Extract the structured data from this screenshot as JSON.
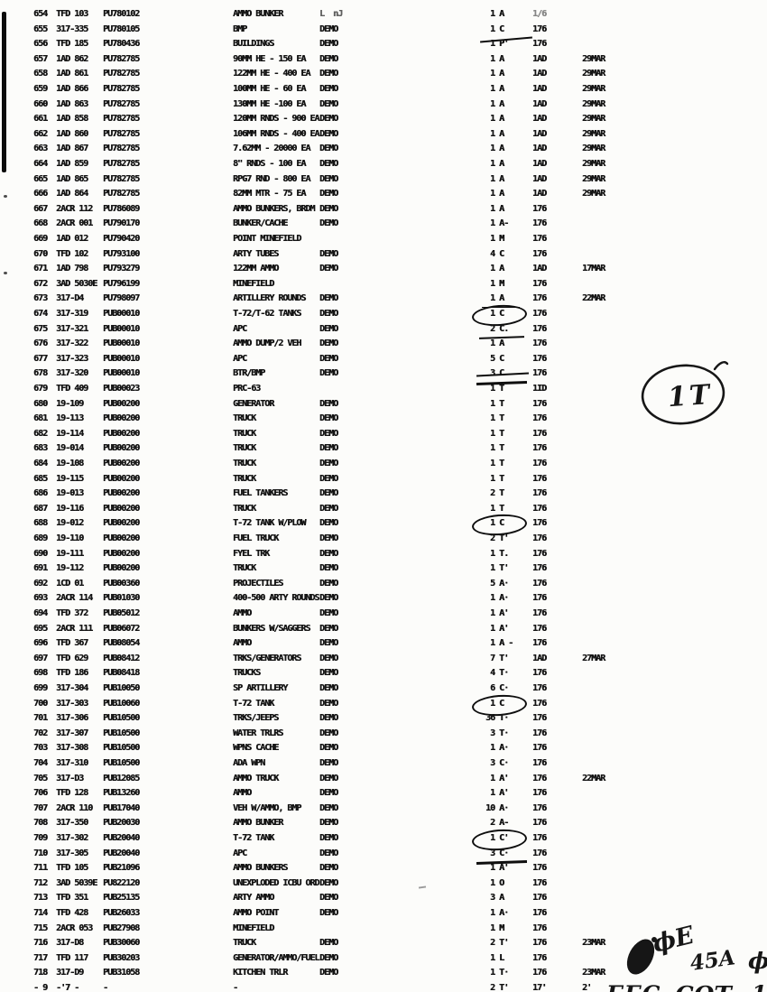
{
  "document": {
    "bg_color": "#fcfcfa",
    "ink_color": "#141414",
    "handwritten": {
      "circled_note": "1T",
      "top_fragments": [
        "ϕE",
        "45A",
        "ϕ"
      ],
      "bottom_fragments": [
        "ΓΓC",
        "ϹΟΤ",
        "1'"
      ]
    },
    "rows": [
      {
        "no": "654",
        "unit": "TFD 103",
        "code": "PU780102",
        "desc": "AMMO BUNKER",
        "demo": "L  nJ",
        "demo_faint": true,
        "qty": " 1 A",
        "grp": "1/6",
        "grp_faint": true,
        "date": ""
      },
      {
        "no": "655",
        "unit": "317-335",
        "code": "PU780105",
        "desc": "BMP",
        "demo": "DEMO",
        "qty": " 1 C",
        "grp": "176",
        "date": "",
        "mark": "underline-slant"
      },
      {
        "no": "656",
        "unit": "TFD 185",
        "code": "PU780436",
        "desc": "BUILDINGS",
        "demo": "DEMO",
        "qty": " 1 P'",
        "grp": "176",
        "date": ""
      },
      {
        "no": "657",
        "unit": "1AD 862",
        "code": "PU782785",
        "desc": "90MM HE - 150 EA",
        "demo": "DEMO",
        "qty": " 1 A",
        "grp": "1AD",
        "date": "29MAR"
      },
      {
        "no": "658",
        "unit": "1AD 861",
        "code": "PU782785",
        "desc": "122MM HE - 400 EA",
        "demo": "DEMO",
        "qty": " 1 A",
        "grp": "1AD",
        "date": "29MAR"
      },
      {
        "no": "659",
        "unit": "1AD 866",
        "code": "PU782785",
        "desc": "100MM HE - 60 EA",
        "demo": "DEMO",
        "qty": " 1 A",
        "grp": "1AD",
        "date": "29MAR"
      },
      {
        "no": "660",
        "unit": "1AD 863",
        "code": "PU782785",
        "desc": "130MM HE -100 EA",
        "demo": "DEMO",
        "qty": " 1 A",
        "grp": "1AD",
        "date": "29MAR"
      },
      {
        "no": "661",
        "unit": "1AD 858",
        "code": "PU782785",
        "desc": "120MM RNDS - 900 EA",
        "demo": "DEMO",
        "qty": " 1 A",
        "grp": "1AD",
        "date": "29MAR"
      },
      {
        "no": "662",
        "unit": "1AD 860",
        "code": "PU782785",
        "desc": "106MM RNDS - 400 EA",
        "demo": "DEMO",
        "qty": " 1 A",
        "grp": "1AD",
        "date": "29MAR"
      },
      {
        "no": "663",
        "unit": "1AD 867",
        "code": "PU782785",
        "desc": "7.62MM - 20000 EA",
        "demo": "DEMO",
        "qty": " 1 A",
        "grp": "1AD",
        "date": "29MAR"
      },
      {
        "no": "664",
        "unit": "1AD 859",
        "code": "PU782785",
        "desc": "8\" RNDS - 100 EA",
        "demo": "DEMO",
        "qty": " 1 A",
        "grp": "1AD",
        "date": "29MAR"
      },
      {
        "no": "665",
        "unit": "1AD 865",
        "code": "PU782785",
        "desc": "RPG7 RND - 800 EA",
        "demo": "DEMO",
        "qty": " 1 A",
        "grp": "1AD",
        "date": "29MAR"
      },
      {
        "no": "666",
        "unit": "1AD 864",
        "code": "PU782785",
        "desc": "82MM MTR - 75 EA",
        "demo": "DEMO",
        "qty": " 1 A",
        "grp": "1AD",
        "date": "29MAR"
      },
      {
        "no": "667",
        "unit": "2ACR 112",
        "code": "PU786089",
        "desc": "AMMO BUNKERS, BRDM",
        "demo": "DEMO",
        "qty": " 1 A",
        "grp": "176",
        "date": ""
      },
      {
        "no": "668",
        "unit": "2ACR 001",
        "code": "PU790170",
        "desc": "BUNKER/CACHE",
        "demo": "DEMO",
        "qty": " 1 A-",
        "grp": "176",
        "date": ""
      },
      {
        "no": "669",
        "unit": "1AD 012",
        "code": "PU790420",
        "desc": "POINT MINEFIELD",
        "demo": "",
        "qty": " 1 M",
        "grp": "176",
        "date": ""
      },
      {
        "no": "670",
        "unit": "TFD 102",
        "code": "PU793100",
        "desc": "ARTY TUBES",
        "demo": "DEMO",
        "qty": " 4 C",
        "grp": "176",
        "date": ""
      },
      {
        "no": "671",
        "unit": "1AD 798",
        "code": "PU793279",
        "desc": "122MM AMMO",
        "demo": "DEMO",
        "qty": " 1 A",
        "grp": "1AD",
        "date": "17MAR"
      },
      {
        "no": "672",
        "unit": "3AD 5030E",
        "code": "PU796199",
        "desc": "MINEFIELD",
        "demo": "",
        "qty": " 1 M",
        "grp": "176",
        "date": ""
      },
      {
        "no": "673",
        "unit": "317-D4",
        "code": "PU798097",
        "desc": "ARTILLERY ROUNDS",
        "demo": "DEMO",
        "qty": " 1 A",
        "grp": "176",
        "date": "22MAR",
        "mark": "underline-thin"
      },
      {
        "no": "674",
        "unit": "317-319",
        "code": "PUB00010",
        "desc": "T-72/T-62 TANKS",
        "demo": "DEMO",
        "qty": " 1 C",
        "grp": "176",
        "date": "",
        "mark": "circle"
      },
      {
        "no": "675",
        "unit": "317-321",
        "code": "PUB00010",
        "desc": "APC",
        "demo": "DEMO",
        "qty": " 2 C.",
        "grp": "176",
        "date": "",
        "mark": "underline"
      },
      {
        "no": "676",
        "unit": "317-322",
        "code": "PUB00010",
        "desc": "AMMO DUMP/2 VEH",
        "demo": "DEMO",
        "qty": " 1 A",
        "grp": "176",
        "date": ""
      },
      {
        "no": "677",
        "unit": "317-323",
        "code": "PUB00010",
        "desc": "APC",
        "demo": "DEMO",
        "qty": " 5 C",
        "grp": "176",
        "date": ""
      },
      {
        "no": "678",
        "unit": "317-320",
        "code": "PUB00010",
        "desc": "BTR/BMP",
        "demo": "DEMO",
        "qty": " 3 C",
        "grp": "176",
        "date": "",
        "mark": "strike-underline"
      },
      {
        "no": "679",
        "unit": "TFD 409",
        "code": "PUB00023",
        "desc": "PRC-63",
        "demo": "",
        "qty": " 1 T",
        "grp": "1ID",
        "date": ""
      },
      {
        "no": "680",
        "unit": "19-109",
        "code": "PUB00200",
        "desc": "GENERATOR",
        "demo": "DEMO",
        "qty": " 1 T",
        "grp": "176",
        "date": ""
      },
      {
        "no": "681",
        "unit": "19-113",
        "code": "PUB00200",
        "desc": "TRUCK",
        "demo": "DEMO",
        "qty": " 1 T",
        "grp": "176",
        "date": ""
      },
      {
        "no": "682",
        "unit": "19-114",
        "code": "PUB00200",
        "desc": "TRUCK",
        "demo": "DEMO",
        "qty": " 1 T",
        "grp": "176",
        "date": ""
      },
      {
        "no": "683",
        "unit": "19-014",
        "code": "PUB00200",
        "desc": "TRUCK",
        "demo": "DEMO",
        "qty": " 1 T",
        "grp": "176",
        "date": ""
      },
      {
        "no": "684",
        "unit": "19-108",
        "code": "PUB00200",
        "desc": "TRUCK",
        "demo": "DEMO",
        "qty": " 1 T",
        "grp": "176",
        "date": ""
      },
      {
        "no": "685",
        "unit": "19-115",
        "code": "PUB00200",
        "desc": "TRUCK",
        "demo": "DEMO",
        "qty": " 1 T",
        "grp": "176",
        "date": ""
      },
      {
        "no": "686",
        "unit": "19-013",
        "code": "PUB00200",
        "desc": "FUEL TANKERS",
        "demo": "DEMO",
        "qty": " 2 T",
        "grp": "176",
        "date": ""
      },
      {
        "no": "687",
        "unit": "19-116",
        "code": "PUB00200",
        "desc": "TRUCK",
        "demo": "DEMO",
        "qty": " 1 T",
        "grp": "176",
        "date": ""
      },
      {
        "no": "688",
        "unit": "19-012",
        "code": "PUB00200",
        "desc": "T-72 TANK W/PLOW",
        "demo": "DEMO",
        "qty": " 1 C",
        "grp": "176",
        "date": "",
        "mark": "circle"
      },
      {
        "no": "689",
        "unit": "19-110",
        "code": "PUB00200",
        "desc": "FUEL TRUCK",
        "demo": "DEMO",
        "qty": " 2 T'",
        "grp": "176",
        "date": ""
      },
      {
        "no": "690",
        "unit": "19-111",
        "code": "PUB00200",
        "desc": "FYEL TRK",
        "demo": "DEMO",
        "qty": " 1 T.",
        "grp": "176",
        "date": ""
      },
      {
        "no": "691",
        "unit": "19-112",
        "code": "PUB00200",
        "desc": "TRUCK",
        "demo": "DEMO",
        "qty": " 1 T'",
        "grp": "176",
        "date": ""
      },
      {
        "no": "692",
        "unit": "1CD 01",
        "code": "PUB00360",
        "desc": "PROJECTILES",
        "demo": "DEMO",
        "qty": " 5 A·",
        "grp": "176",
        "date": ""
      },
      {
        "no": "693",
        "unit": "2ACR 114",
        "code": "PUB01030",
        "desc": "400-500 ARTY ROUNDS",
        "demo": "DEMO",
        "qty": " 1 A·",
        "grp": "176",
        "date": ""
      },
      {
        "no": "694",
        "unit": "TFD 372",
        "code": "PUB05012",
        "desc": "AMMO",
        "demo": "DEMO",
        "qty": " 1 A'",
        "grp": "176",
        "date": ""
      },
      {
        "no": "695",
        "unit": "2ACR 111",
        "code": "PUB06072",
        "desc": "BUNKERS W/SAGGERS",
        "demo": "DEMO",
        "qty": " 1 A'",
        "grp": "176",
        "date": ""
      },
      {
        "no": "696",
        "unit": "TFD 367",
        "code": "PUB08054",
        "desc": "AMMO",
        "demo": "DEMO",
        "qty": " 1 A -",
        "grp": "176",
        "date": ""
      },
      {
        "no": "697",
        "unit": "TFD 629",
        "code": "PUB08412",
        "desc": "TRKS/GENERATORS",
        "demo": "DEMO",
        "qty": " 7 T'",
        "grp": "1AD",
        "date": "27MAR"
      },
      {
        "no": "698",
        "unit": "TFD 186",
        "code": "PUB08418",
        "desc": "TRUCKS",
        "demo": "DEMO",
        "qty": " 4 T·",
        "grp": "176",
        "date": ""
      },
      {
        "no": "699",
        "unit": "317-304",
        "code": "PUB10050",
        "desc": "SP ARTILLERY",
        "demo": "DEMO",
        "qty": " 6 C·",
        "grp": "176",
        "date": ""
      },
      {
        "no": "700",
        "unit": "317-303",
        "code": "PUB10060",
        "desc": "T-72 TANK",
        "demo": "DEMO",
        "qty": " 1 C",
        "grp": "176",
        "date": "",
        "mark": "circle"
      },
      {
        "no": "701",
        "unit": "317-306",
        "code": "PUB10500",
        "desc": "TRKS/JEEPS",
        "demo": "DEMO",
        "qty": "36 T·",
        "grp": "176",
        "date": ""
      },
      {
        "no": "702",
        "unit": "317-307",
        "code": "PUB10500",
        "desc": "WATER TRLRS",
        "demo": "DEMO",
        "qty": " 3 T·",
        "grp": "176",
        "date": ""
      },
      {
        "no": "703",
        "unit": "317-308",
        "code": "PUB10500",
        "desc": "WPNS CACHE",
        "demo": "DEMO",
        "qty": " 1 A·",
        "grp": "176",
        "date": ""
      },
      {
        "no": "704",
        "unit": "317-310",
        "code": "PUB10500",
        "desc": "ADA WPN",
        "demo": "DEMO",
        "qty": " 3 C·",
        "grp": "176",
        "date": ""
      },
      {
        "no": "705",
        "unit": "317-D3",
        "code": "PUB12085",
        "desc": "AMMO TRUCK",
        "demo": "DEMO",
        "qty": " 1 A'",
        "grp": "176",
        "date": "22MAR"
      },
      {
        "no": "706",
        "unit": "TFD 128",
        "code": "PUB13260",
        "desc": "AMMO",
        "demo": "DEMO",
        "qty": " 1 A'",
        "grp": "176",
        "date": ""
      },
      {
        "no": "707",
        "unit": "2ACR 110",
        "code": "PUB17040",
        "desc": "VEH W/AMMO, BMP",
        "demo": "DEMO",
        "qty": "10 A·",
        "grp": "176",
        "date": ""
      },
      {
        "no": "708",
        "unit": "317-350",
        "code": "PUB20030",
        "desc": "AMMO BUNKER",
        "demo": "DEMO",
        "qty": " 2 A-",
        "grp": "176",
        "date": ""
      },
      {
        "no": "709",
        "unit": "317-302",
        "code": "PUB20040",
        "desc": "T-72 TANK",
        "demo": "DEMO",
        "qty": " 1 C'",
        "grp": "176",
        "date": "",
        "mark": "circle"
      },
      {
        "no": "710",
        "unit": "317-305",
        "code": "PUB20040",
        "desc": "APC",
        "demo": "DEMO",
        "qty": " 3 C·",
        "grp": "176",
        "date": "",
        "mark": "underline-bold"
      },
      {
        "no": "711",
        "unit": "TFD 105",
        "code": "PUB21096",
        "desc": "AMMO BUNKERS",
        "demo": "DEMO",
        "qty": " 1 A'",
        "grp": "176",
        "date": ""
      },
      {
        "no": "712",
        "unit": "3AD 5039E",
        "code": "PU822120",
        "desc": "UNEXPLODED ICBU ORD",
        "demo": "DEMO",
        "qty": " 1 O",
        "grp": "176",
        "date": ""
      },
      {
        "no": "713",
        "unit": "TFD 351",
        "code": "PUB25135",
        "desc": "ARTY AMMO",
        "demo": "DEMO",
        "qty": " 3 A",
        "grp": "176",
        "date": ""
      },
      {
        "no": "714",
        "unit": "TFD 428",
        "code": "PUB26033",
        "desc": "AMMO POINT",
        "demo": "DEMO",
        "qty": " 1 A·",
        "grp": "176",
        "date": ""
      },
      {
        "no": "715",
        "unit": "2ACR 053",
        "code": "PUB27908",
        "desc": "MINEFIELD",
        "demo": "",
        "qty": " 1 M",
        "grp": "176",
        "date": ""
      },
      {
        "no": "716",
        "unit": "317-D8",
        "code": "PUB30060",
        "desc": "TRUCK",
        "demo": "DEMO",
        "qty": " 2 T'",
        "grp": "176",
        "date": "23MAR"
      },
      {
        "no": "717",
        "unit": "TFD 117",
        "code": "PUB30203",
        "desc": "GENERATOR/AMMO/FUEL",
        "demo": "DEMO",
        "qty": " 1 L",
        "grp": "176",
        "date": ""
      },
      {
        "no": "718",
        "unit": "317-D9",
        "code": "PUB31058",
        "desc": "KITCHEN TRLR",
        "demo": "DEMO",
        "qty": " 1 T·",
        "grp": "176",
        "date": "23MAR"
      },
      {
        "no": "- 9",
        "unit": "-'7 -",
        "code": "-",
        "desc": "-",
        "demo": "",
        "qty": " 2 T'",
        "grp": "17'",
        "date": "2'",
        "clipped": true
      }
    ]
  }
}
